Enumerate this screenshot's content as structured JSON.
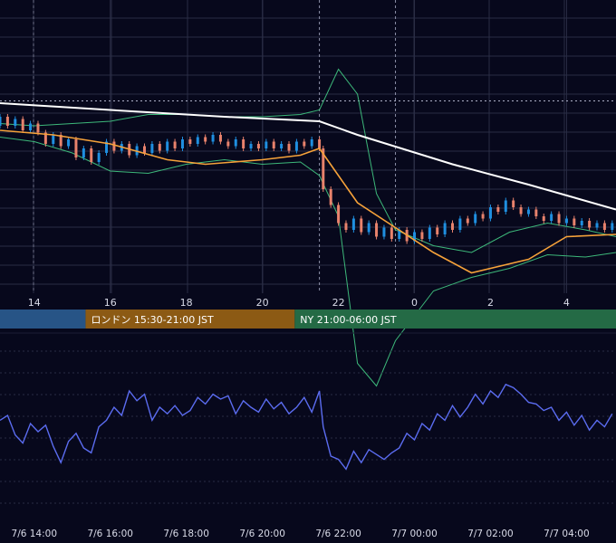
{
  "colors": {
    "background": "#07081c",
    "grid": "#2a2d45",
    "candle_up": "#1f8fe0",
    "candle_down": "#e8826c",
    "ma_orange": "#f6a23a",
    "long_ma": "#ffffff",
    "bollinger": "#3db87a",
    "rsi_line": "#5b6cf0",
    "session_tokyo": "#275486",
    "session_london": "#8c5a14",
    "session_ny": "#246a45"
  },
  "chart_data": [
    {
      "type": "candlestick",
      "name": "price",
      "x_hour_ticks": [
        "14",
        "16",
        "18",
        "20",
        "22",
        "0",
        "2",
        "4"
      ],
      "x_tick_hours": [
        14,
        16,
        18,
        20,
        22,
        24,
        26,
        28
      ],
      "x_range_hours": [
        13.1,
        29.3
      ],
      "y_range": [
        0,
        100
      ],
      "grid": true,
      "reference_line_y": 81,
      "event_lines_hours": [
        21.5,
        23.5
      ],
      "legend": "none",
      "overlays": {
        "short_ma_orange": [
          [
            13.1,
            68
          ],
          [
            14.5,
            66
          ],
          [
            16,
            62
          ],
          [
            17.5,
            55
          ],
          [
            18.5,
            53
          ],
          [
            20,
            55
          ],
          [
            21,
            57
          ],
          [
            21.5,
            60
          ],
          [
            22,
            48
          ],
          [
            22.5,
            36
          ],
          [
            23.5,
            25
          ],
          [
            24.5,
            14
          ],
          [
            25.5,
            5
          ],
          [
            27,
            11
          ],
          [
            28,
            21
          ],
          [
            29.3,
            22
          ]
        ],
        "long_ma_white": [
          [
            13.1,
            80
          ],
          [
            16,
            77
          ],
          [
            19,
            74
          ],
          [
            21.5,
            72
          ],
          [
            22.5,
            66
          ],
          [
            25,
            53
          ],
          [
            27,
            44
          ],
          [
            29.3,
            33
          ]
        ],
        "bollinger_upper": [
          [
            13.1,
            71
          ],
          [
            14,
            70
          ],
          [
            15,
            71
          ],
          [
            16,
            72
          ],
          [
            17,
            75
          ],
          [
            18,
            75
          ],
          [
            19,
            74
          ],
          [
            20,
            74
          ],
          [
            21,
            75
          ],
          [
            21.5,
            77
          ],
          [
            22,
            95
          ],
          [
            22.5,
            84
          ],
          [
            23,
            40
          ],
          [
            23.5,
            24
          ],
          [
            24.5,
            17
          ],
          [
            25.5,
            14
          ],
          [
            26.5,
            23
          ],
          [
            27.5,
            27
          ],
          [
            28.5,
            24
          ],
          [
            29.3,
            21
          ]
        ],
        "bollinger_lower": [
          [
            13.1,
            65
          ],
          [
            14,
            63
          ],
          [
            15,
            58
          ],
          [
            16,
            50
          ],
          [
            17,
            49
          ],
          [
            18,
            53
          ],
          [
            19,
            55
          ],
          [
            20,
            53
          ],
          [
            21,
            54
          ],
          [
            21.5,
            48
          ],
          [
            22,
            30
          ],
          [
            22.5,
            -35
          ],
          [
            23,
            -45
          ],
          [
            23.5,
            -25
          ],
          [
            24.5,
            -3
          ],
          [
            25.5,
            3
          ],
          [
            26.5,
            7
          ],
          [
            27.5,
            13
          ],
          [
            28.5,
            12
          ],
          [
            29.3,
            14
          ]
        ]
      },
      "candles": [
        [
          13.1,
          70,
          74
        ],
        [
          13.3,
          74,
          70
        ],
        [
          13.5,
          70,
          73
        ],
        [
          13.7,
          73,
          68
        ],
        [
          13.9,
          68,
          71
        ],
        [
          14.1,
          71,
          67
        ],
        [
          14.3,
          67,
          62
        ],
        [
          14.5,
          62,
          66
        ],
        [
          14.7,
          66,
          61
        ],
        [
          14.9,
          61,
          64
        ],
        [
          15.1,
          64,
          56
        ],
        [
          15.3,
          56,
          60
        ],
        [
          15.5,
          60,
          54
        ],
        [
          15.7,
          54,
          58
        ],
        [
          15.9,
          58,
          63
        ],
        [
          16.1,
          63,
          59
        ],
        [
          16.3,
          59,
          62
        ],
        [
          16.5,
          62,
          57
        ],
        [
          16.7,
          57,
          61
        ],
        [
          16.9,
          61,
          58
        ],
        [
          17.1,
          58,
          62
        ],
        [
          17.3,
          62,
          59
        ],
        [
          17.5,
          59,
          63
        ],
        [
          17.7,
          63,
          60
        ],
        [
          17.9,
          60,
          64
        ],
        [
          18.1,
          64,
          62
        ],
        [
          18.3,
          62,
          65
        ],
        [
          18.5,
          65,
          63
        ],
        [
          18.7,
          63,
          66
        ],
        [
          18.9,
          66,
          63
        ],
        [
          19.1,
          63,
          61
        ],
        [
          19.3,
          61,
          64
        ],
        [
          19.5,
          64,
          60
        ],
        [
          19.7,
          60,
          62
        ],
        [
          19.9,
          62,
          60
        ],
        [
          20.1,
          60,
          63
        ],
        [
          20.3,
          63,
          60
        ],
        [
          20.5,
          60,
          62
        ],
        [
          20.7,
          62,
          59
        ],
        [
          20.9,
          59,
          63
        ],
        [
          21.1,
          63,
          61
        ],
        [
          21.3,
          61,
          64
        ],
        [
          21.5,
          64,
          60
        ],
        [
          21.6,
          60,
          42
        ],
        [
          21.8,
          42,
          35
        ],
        [
          22.0,
          35,
          27
        ],
        [
          22.2,
          27,
          24
        ],
        [
          22.4,
          24,
          29
        ],
        [
          22.6,
          29,
          23
        ],
        [
          22.8,
          23,
          27
        ],
        [
          23.0,
          27,
          21
        ],
        [
          23.2,
          21,
          25
        ],
        [
          23.4,
          25,
          20
        ],
        [
          23.6,
          20,
          24
        ],
        [
          23.8,
          24,
          19
        ],
        [
          24.0,
          19,
          23
        ],
        [
          24.2,
          23,
          20
        ],
        [
          24.4,
          20,
          25
        ],
        [
          24.6,
          25,
          22
        ],
        [
          24.8,
          22,
          27
        ],
        [
          25.0,
          27,
          24
        ],
        [
          25.2,
          24,
          29
        ],
        [
          25.4,
          29,
          27
        ],
        [
          25.6,
          27,
          31
        ],
        [
          25.8,
          31,
          29
        ],
        [
          26.0,
          29,
          34
        ],
        [
          26.2,
          34,
          32
        ],
        [
          26.4,
          32,
          37
        ],
        [
          26.6,
          37,
          34
        ],
        [
          26.8,
          34,
          31
        ],
        [
          27.0,
          31,
          33
        ],
        [
          27.2,
          33,
          30
        ],
        [
          27.4,
          30,
          28
        ],
        [
          27.6,
          28,
          31
        ],
        [
          27.8,
          31,
          27
        ],
        [
          28.0,
          27,
          29
        ],
        [
          28.2,
          29,
          26
        ],
        [
          28.4,
          26,
          28
        ],
        [
          28.6,
          28,
          25
        ],
        [
          28.8,
          25,
          27
        ],
        [
          29.0,
          27,
          24
        ],
        [
          29.2,
          24,
          27
        ]
      ]
    },
    {
      "type": "line",
      "name": "oscillator",
      "x_labels": [
        "7/6 14:00",
        "7/6 16:00",
        "7/6 18:00",
        "7/6 20:00",
        "7/6 22:00",
        "7/7 00:00",
        "7/7 02:00",
        "7/7 04:00"
      ],
      "x_label_hours": [
        14,
        16,
        18,
        20,
        22,
        24,
        26,
        28
      ],
      "x_range_hours": [
        13.1,
        29.3
      ],
      "y_range": [
        0,
        100
      ],
      "grid": true,
      "points": [
        [
          13.1,
          52
        ],
        [
          13.3,
          55
        ],
        [
          13.5,
          43
        ],
        [
          13.7,
          38
        ],
        [
          13.9,
          50
        ],
        [
          14.1,
          45
        ],
        [
          14.3,
          49
        ],
        [
          14.5,
          36
        ],
        [
          14.7,
          26
        ],
        [
          14.9,
          39
        ],
        [
          15.1,
          44
        ],
        [
          15.3,
          35
        ],
        [
          15.5,
          32
        ],
        [
          15.7,
          48
        ],
        [
          15.9,
          52
        ],
        [
          16.1,
          60
        ],
        [
          16.3,
          55
        ],
        [
          16.5,
          70
        ],
        [
          16.7,
          64
        ],
        [
          16.9,
          68
        ],
        [
          17.1,
          52
        ],
        [
          17.3,
          60
        ],
        [
          17.5,
          56
        ],
        [
          17.7,
          61
        ],
        [
          17.9,
          55
        ],
        [
          18.1,
          58
        ],
        [
          18.3,
          66
        ],
        [
          18.5,
          62
        ],
        [
          18.7,
          68
        ],
        [
          18.9,
          65
        ],
        [
          19.1,
          67
        ],
        [
          19.3,
          56
        ],
        [
          19.5,
          64
        ],
        [
          19.7,
          60
        ],
        [
          19.9,
          57
        ],
        [
          20.1,
          65
        ],
        [
          20.3,
          59
        ],
        [
          20.5,
          63
        ],
        [
          20.7,
          56
        ],
        [
          20.9,
          60
        ],
        [
          21.1,
          66
        ],
        [
          21.3,
          57
        ],
        [
          21.5,
          70
        ],
        [
          21.6,
          48
        ],
        [
          21.8,
          30
        ],
        [
          22.0,
          28
        ],
        [
          22.2,
          22
        ],
        [
          22.4,
          33
        ],
        [
          22.6,
          26
        ],
        [
          22.8,
          34
        ],
        [
          23.0,
          31
        ],
        [
          23.2,
          28
        ],
        [
          23.4,
          32
        ],
        [
          23.6,
          35
        ],
        [
          23.8,
          44
        ],
        [
          24.0,
          40
        ],
        [
          24.2,
          50
        ],
        [
          24.4,
          46
        ],
        [
          24.6,
          56
        ],
        [
          24.8,
          52
        ],
        [
          25.0,
          61
        ],
        [
          25.2,
          54
        ],
        [
          25.4,
          60
        ],
        [
          25.6,
          68
        ],
        [
          25.8,
          62
        ],
        [
          26.0,
          70
        ],
        [
          26.2,
          66
        ],
        [
          26.4,
          74
        ],
        [
          26.6,
          72
        ],
        [
          26.8,
          68
        ],
        [
          27.0,
          63
        ],
        [
          27.2,
          62
        ],
        [
          27.4,
          58
        ],
        [
          27.6,
          60
        ],
        [
          27.8,
          52
        ],
        [
          28.0,
          57
        ],
        [
          28.2,
          49
        ],
        [
          28.4,
          55
        ],
        [
          28.6,
          46
        ],
        [
          28.8,
          52
        ],
        [
          29.0,
          48
        ],
        [
          29.2,
          56
        ]
      ]
    }
  ],
  "sessions": [
    {
      "label": "",
      "start_hour": 13.1,
      "end_hour": 15.35,
      "color": "#275486"
    },
    {
      "label": "ロンドン 15:30-21:00 JST",
      "start_hour": 15.35,
      "end_hour": 20.85,
      "color": "#8c5a14"
    },
    {
      "label": "NY 21:00-06:00 JST",
      "start_hour": 20.85,
      "end_hour": 29.3,
      "color": "#246a45"
    }
  ]
}
